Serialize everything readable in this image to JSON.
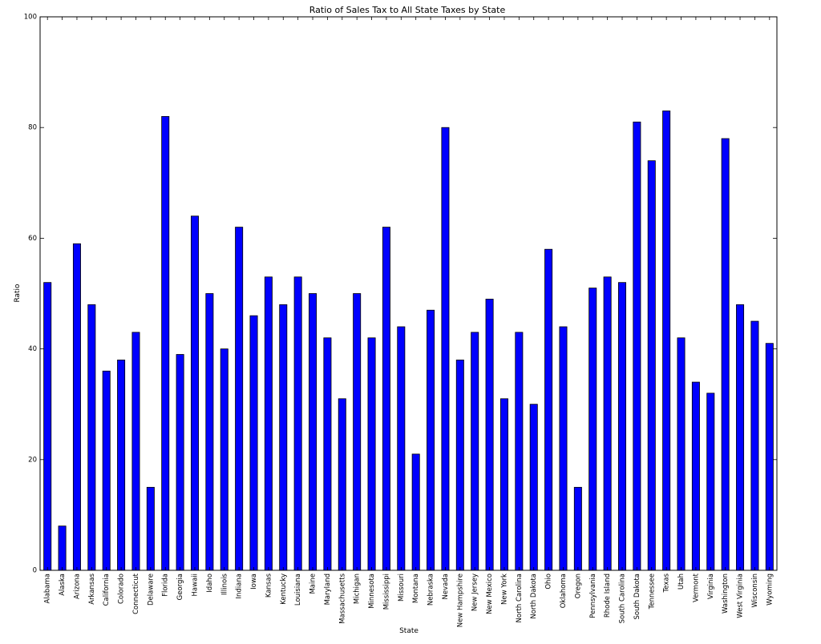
{
  "chart_data": {
    "type": "bar",
    "title": "Ratio of Sales Tax to All State Taxes by State",
    "xlabel": "State",
    "ylabel": "Ratio",
    "ylim": [
      0,
      100
    ],
    "yticks": [
      0,
      20,
      40,
      60,
      80,
      100
    ],
    "grid": false,
    "bar_color": "#0000ff",
    "categories": [
      "Alabama",
      "Alaska",
      "Arizona",
      "Arkansas",
      "California",
      "Colorado",
      "Connecticut",
      "Delaware",
      "Florida",
      "Georgia",
      "Hawaii",
      "Idaho",
      "Illinois",
      "Indiana",
      "Iowa",
      "Kansas",
      "Kentucky",
      "Louisiana",
      "Maine",
      "Maryland",
      "Massachusetts",
      "Michigan",
      "Minnesota",
      "Mississippi",
      "Missouri",
      "Montana",
      "Nebraska",
      "Nevada",
      "New Hampshire",
      "New Jersey",
      "New Mexico",
      "New York",
      "North Carolina",
      "North Dakota",
      "Ohio",
      "Oklahoma",
      "Oregon",
      "Pennsylvania",
      "Rhode Island",
      "South Carolina",
      "South Dakota",
      "Tennessee",
      "Texas",
      "Utah",
      "Vermont",
      "Virginia",
      "Washington",
      "West Virginia",
      "Wisconsin",
      "Wyoming"
    ],
    "values": [
      52,
      8,
      59,
      48,
      36,
      38,
      43,
      15,
      82,
      39,
      64,
      50,
      40,
      62,
      46,
      53,
      48,
      53,
      50,
      42,
      31,
      50,
      42,
      62,
      44,
      21,
      47,
      80,
      38,
      43,
      49,
      31,
      43,
      30,
      58,
      44,
      15,
      51,
      53,
      52,
      81,
      74,
      83,
      42,
      34,
      32,
      78,
      48,
      45,
      41
    ]
  }
}
